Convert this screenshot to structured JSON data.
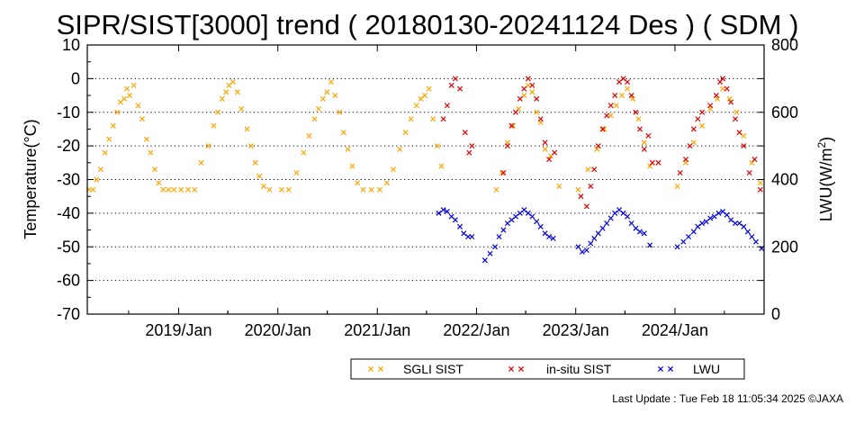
{
  "chart_data": {
    "type": "scatter",
    "title": "SIPR/SIST[3000] trend ( 20180130-20241124 Des ) ( SDM )",
    "ylabel": "Temperature(°C)",
    "y2label": "LWU(W/m²)",
    "y2label_base": "LWU(W/m",
    "y2label_exp": "2",
    "y2label_tail": ")",
    "xlim": [
      "2018-01-30",
      "2024-11-24"
    ],
    "ylim": [
      -70,
      10
    ],
    "y2lim": [
      0,
      800
    ],
    "yticks": [
      "10",
      "0",
      "-10",
      "-20",
      "-30",
      "-40",
      "-50",
      "-60",
      "-70"
    ],
    "y2ticks": [
      "800",
      "600",
      "400",
      "200",
      "0"
    ],
    "xticks": [
      {
        "date": "2019-01-01",
        "label": "2019/Jan"
      },
      {
        "date": "2020-01-01",
        "label": "2020/Jan"
      },
      {
        "date": "2021-01-01",
        "label": "2021/Jan"
      },
      {
        "date": "2022-01-01",
        "label": "2022/Jan"
      },
      {
        "date": "2023-01-01",
        "label": "2023/Jan"
      },
      {
        "date": "2024-01-01",
        "label": "2024/Jan"
      }
    ],
    "grid": "dotted horizontal",
    "legend_position": "bottom-right",
    "series": [
      {
        "name": "SGLI SIST",
        "color": "#ffa500",
        "axis": "left",
        "points": [
          [
            "2018-02-05",
            -33
          ],
          [
            "2018-02-20",
            -33
          ],
          [
            "2018-03-05",
            -30
          ],
          [
            "2018-03-20",
            -27
          ],
          [
            "2018-04-05",
            -22
          ],
          [
            "2018-04-20",
            -18
          ],
          [
            "2018-05-05",
            -14
          ],
          [
            "2018-05-20",
            -10
          ],
          [
            "2018-06-01",
            -7
          ],
          [
            "2018-06-15",
            -6
          ],
          [
            "2018-06-25",
            -3
          ],
          [
            "2018-07-05",
            -5
          ],
          [
            "2018-07-20",
            -2
          ],
          [
            "2018-08-05",
            -8
          ],
          [
            "2018-08-20",
            -12
          ],
          [
            "2018-09-05",
            -18
          ],
          [
            "2018-09-20",
            -22
          ],
          [
            "2018-10-05",
            -27
          ],
          [
            "2018-10-20",
            -31
          ],
          [
            "2018-11-05",
            -33
          ],
          [
            "2018-11-25",
            -33
          ],
          [
            "2018-12-15",
            -33
          ],
          [
            "2019-01-10",
            -33
          ],
          [
            "2019-02-05",
            -33
          ],
          [
            "2019-03-01",
            -33
          ],
          [
            "2019-03-25",
            -25
          ],
          [
            "2019-04-20",
            -20
          ],
          [
            "2019-05-10",
            -14
          ],
          [
            "2019-05-25",
            -10
          ],
          [
            "2019-06-10",
            -6
          ],
          [
            "2019-06-25",
            -4
          ],
          [
            "2019-07-05",
            -2
          ],
          [
            "2019-07-20",
            -1
          ],
          [
            "2019-08-05",
            -4
          ],
          [
            "2019-08-20",
            -9
          ],
          [
            "2019-09-10",
            -15
          ],
          [
            "2019-09-25",
            -20
          ],
          [
            "2019-10-10",
            -25
          ],
          [
            "2019-10-25",
            -29
          ],
          [
            "2019-11-10",
            -32
          ],
          [
            "2019-12-01",
            -33
          ],
          [
            "2020-01-15",
            -33
          ],
          [
            "2020-02-10",
            -33
          ],
          [
            "2020-03-10",
            -28
          ],
          [
            "2020-04-05",
            -22
          ],
          [
            "2020-04-25",
            -17
          ],
          [
            "2020-05-15",
            -12
          ],
          [
            "2020-05-30",
            -9
          ],
          [
            "2020-06-15",
            -6
          ],
          [
            "2020-06-30",
            -4
          ],
          [
            "2020-07-15",
            -1
          ],
          [
            "2020-07-30",
            -5
          ],
          [
            "2020-08-15",
            -10
          ],
          [
            "2020-08-30",
            -16
          ],
          [
            "2020-09-15",
            -21
          ],
          [
            "2020-10-01",
            -26
          ],
          [
            "2020-10-20",
            -31
          ],
          [
            "2020-11-10",
            -33
          ],
          [
            "2020-12-10",
            -33
          ],
          [
            "2021-01-10",
            -33
          ],
          [
            "2021-02-05",
            -31
          ],
          [
            "2021-03-01",
            -27
          ],
          [
            "2021-03-25",
            -21
          ],
          [
            "2021-04-15",
            -16
          ],
          [
            "2021-05-05",
            -12
          ],
          [
            "2021-05-25",
            -8
          ],
          [
            "2021-06-10",
            -6
          ],
          [
            "2021-06-25",
            -5
          ],
          [
            "2021-07-10",
            -3
          ],
          [
            "2021-07-25",
            -12
          ],
          [
            "2021-08-10",
            -20
          ],
          [
            "2021-08-25",
            -26
          ],
          [
            "2022-03-15",
            -33
          ],
          [
            "2022-04-05",
            -28
          ],
          [
            "2022-04-25",
            -19
          ],
          [
            "2022-05-15",
            -14
          ],
          [
            "2022-06-05",
            -9
          ],
          [
            "2022-06-25",
            -5
          ],
          [
            "2022-07-10",
            -2
          ],
          [
            "2022-07-25",
            -4
          ],
          [
            "2022-08-10",
            -10
          ],
          [
            "2022-08-25",
            -13
          ],
          [
            "2022-09-10",
            -21
          ],
          [
            "2022-10-01",
            -23
          ],
          [
            "2022-11-01",
            -32
          ],
          [
            "2023-01-10",
            -33
          ],
          [
            "2023-02-15",
            -27
          ],
          [
            "2023-03-20",
            -21
          ],
          [
            "2023-04-15",
            -15
          ],
          [
            "2023-05-10",
            -11
          ],
          [
            "2023-05-30",
            -8
          ],
          [
            "2023-06-20",
            -5
          ],
          [
            "2023-07-10",
            -3
          ],
          [
            "2023-07-30",
            -6
          ],
          [
            "2023-08-20",
            -12
          ],
          [
            "2023-09-10",
            -19
          ],
          [
            "2023-10-01",
            -26
          ],
          [
            "2024-01-10",
            -32
          ],
          [
            "2024-02-10",
            -25
          ],
          [
            "2024-03-10",
            -19
          ],
          [
            "2024-04-10",
            -14
          ],
          [
            "2024-05-10",
            -9
          ],
          [
            "2024-06-05",
            -6
          ],
          [
            "2024-06-25",
            -3
          ],
          [
            "2024-07-20",
            -6
          ],
          [
            "2024-08-15",
            -10
          ],
          [
            "2024-09-10",
            -17
          ],
          [
            "2024-10-10",
            -25
          ],
          [
            "2024-11-10",
            -31
          ]
        ]
      },
      {
        "name": "in-situ SIST",
        "color": "#e00000",
        "axis": "left",
        "points": [
          [
            "2021-09-01",
            -12
          ],
          [
            "2021-09-15",
            -8
          ],
          [
            "2021-10-01",
            -2
          ],
          [
            "2021-10-15",
            0
          ],
          [
            "2021-11-01",
            -3
          ],
          [
            "2021-11-20",
            -16
          ],
          [
            "2021-12-05",
            -22
          ],
          [
            "2021-12-15",
            -20
          ],
          [
            "2022-04-10",
            -28
          ],
          [
            "2022-04-25",
            -20
          ],
          [
            "2022-05-10",
            -14
          ],
          [
            "2022-05-25",
            -10
          ],
          [
            "2022-06-10",
            -6
          ],
          [
            "2022-06-25",
            -3
          ],
          [
            "2022-07-10",
            0
          ],
          [
            "2022-07-25",
            -2
          ],
          [
            "2022-08-10",
            -6
          ],
          [
            "2022-08-25",
            -12
          ],
          [
            "2022-09-10",
            -19
          ],
          [
            "2022-09-25",
            -24
          ],
          [
            "2022-10-15",
            -22
          ],
          [
            "2023-01-20",
            -35
          ],
          [
            "2023-02-10",
            -38
          ],
          [
            "2023-02-25",
            -32
          ],
          [
            "2023-03-10",
            -27
          ],
          [
            "2023-03-25",
            -20
          ],
          [
            "2023-04-10",
            -15
          ],
          [
            "2023-04-25",
            -11
          ],
          [
            "2023-05-10",
            -8
          ],
          [
            "2023-05-25",
            -5
          ],
          [
            "2023-06-10",
            -1
          ],
          [
            "2023-06-25",
            0
          ],
          [
            "2023-07-10",
            -1
          ],
          [
            "2023-07-25",
            -5
          ],
          [
            "2023-08-10",
            -10
          ],
          [
            "2023-08-25",
            -15
          ],
          [
            "2023-09-10",
            -21
          ],
          [
            "2023-09-25",
            -17
          ],
          [
            "2023-10-10",
            -25
          ],
          [
            "2023-11-01",
            -25
          ],
          [
            "2024-01-20",
            -28
          ],
          [
            "2024-02-10",
            -24
          ],
          [
            "2024-02-25",
            -20
          ],
          [
            "2024-03-10",
            -15
          ],
          [
            "2024-03-25",
            -12
          ],
          [
            "2024-04-10",
            -10
          ],
          [
            "2024-05-10",
            -8
          ],
          [
            "2024-06-01",
            -5
          ],
          [
            "2024-06-15",
            -1
          ],
          [
            "2024-06-25",
            0
          ],
          [
            "2024-07-10",
            -3
          ],
          [
            "2024-07-25",
            -7
          ],
          [
            "2024-08-10",
            -12
          ],
          [
            "2024-08-25",
            -16
          ],
          [
            "2024-09-10",
            -20
          ],
          [
            "2024-10-01",
            -28
          ],
          [
            "2024-10-20",
            -24
          ],
          [
            "2024-11-10",
            -33
          ]
        ]
      },
      {
        "name": "LWU",
        "color": "#0000e0",
        "axis": "right",
        "points": [
          [
            "2021-08-15",
            300
          ],
          [
            "2021-09-01",
            310
          ],
          [
            "2021-09-15",
            305
          ],
          [
            "2021-10-01",
            290
          ],
          [
            "2021-10-15",
            280
          ],
          [
            "2021-11-01",
            260
          ],
          [
            "2021-11-15",
            240
          ],
          [
            "2021-12-01",
            230
          ],
          [
            "2021-12-15",
            230
          ],
          [
            "2022-02-01",
            160
          ],
          [
            "2022-02-20",
            180
          ],
          [
            "2022-03-10",
            200
          ],
          [
            "2022-03-25",
            230
          ],
          [
            "2022-04-10",
            250
          ],
          [
            "2022-04-25",
            270
          ],
          [
            "2022-05-10",
            280
          ],
          [
            "2022-05-25",
            290
          ],
          [
            "2022-06-10",
            300
          ],
          [
            "2022-06-25",
            310
          ],
          [
            "2022-07-10",
            300
          ],
          [
            "2022-07-25",
            290
          ],
          [
            "2022-08-10",
            275
          ],
          [
            "2022-08-25",
            260
          ],
          [
            "2022-09-10",
            240
          ],
          [
            "2022-09-25",
            230
          ],
          [
            "2022-10-10",
            225
          ],
          [
            "2023-01-10",
            200
          ],
          [
            "2023-01-25",
            185
          ],
          [
            "2023-02-10",
            190
          ],
          [
            "2023-02-25",
            210
          ],
          [
            "2023-03-10",
            225
          ],
          [
            "2023-03-25",
            240
          ],
          [
            "2023-04-10",
            255
          ],
          [
            "2023-04-25",
            270
          ],
          [
            "2023-05-10",
            285
          ],
          [
            "2023-05-25",
            300
          ],
          [
            "2023-06-10",
            310
          ],
          [
            "2023-06-25",
            300
          ],
          [
            "2023-07-10",
            290
          ],
          [
            "2023-07-25",
            270
          ],
          [
            "2023-08-10",
            255
          ],
          [
            "2023-08-25",
            245
          ],
          [
            "2023-09-10",
            240
          ],
          [
            "2023-10-01",
            205
          ],
          [
            "2024-01-10",
            200
          ],
          [
            "2024-02-01",
            215
          ],
          [
            "2024-02-20",
            230
          ],
          [
            "2024-03-10",
            245
          ],
          [
            "2024-03-25",
            260
          ],
          [
            "2024-04-10",
            270
          ],
          [
            "2024-04-25",
            275
          ],
          [
            "2024-05-10",
            285
          ],
          [
            "2024-05-25",
            290
          ],
          [
            "2024-06-10",
            300
          ],
          [
            "2024-06-25",
            305
          ],
          [
            "2024-07-10",
            295
          ],
          [
            "2024-07-25",
            280
          ],
          [
            "2024-08-10",
            270
          ],
          [
            "2024-08-25",
            270
          ],
          [
            "2024-09-10",
            260
          ],
          [
            "2024-09-25",
            245
          ],
          [
            "2024-10-10",
            230
          ],
          [
            "2024-10-25",
            215
          ],
          [
            "2024-11-15",
            195
          ]
        ]
      }
    ]
  },
  "footer": {
    "last_update": "Last Update : Tue Feb 18 11:05:34 2025  ©JAXA"
  }
}
